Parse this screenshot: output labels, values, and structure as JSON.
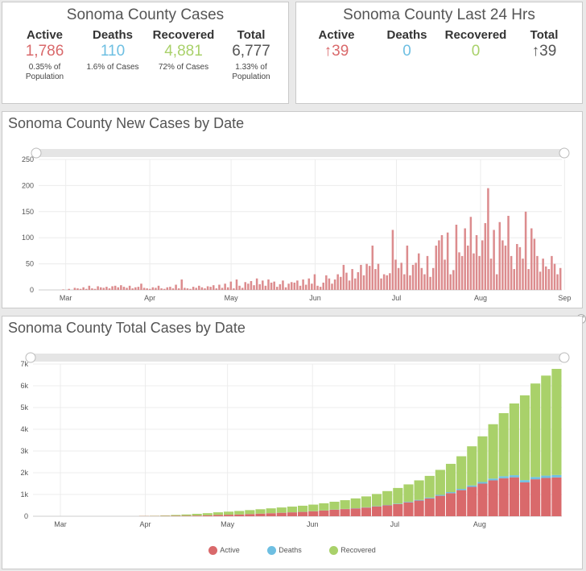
{
  "summary": {
    "title": "Sonoma County Cases",
    "active": {
      "label": "Active",
      "value": "1,786",
      "sub": "0.35% of Population"
    },
    "deaths": {
      "label": "Deaths",
      "value": "110",
      "sub": "1.6% of Cases"
    },
    "recovered": {
      "label": "Recovered",
      "value": "4,881",
      "sub": "72% of Cases"
    },
    "total": {
      "label": "Total",
      "value": "6,777",
      "sub": "1.33% of Population"
    }
  },
  "last24": {
    "title": "Sonoma County Last 24 Hrs",
    "active": {
      "label": "Active",
      "value": "↑39"
    },
    "deaths": {
      "label": "Deaths",
      "value": "0"
    },
    "recovered": {
      "label": "Recovered",
      "value": "0"
    },
    "total": {
      "label": "Total",
      "value": "↑39"
    }
  },
  "colors": {
    "active": "#d9696b",
    "deaths": "#6ebfe2",
    "recovered": "#a9d16a",
    "total": "#555555",
    "new_bar": "#dc8c8e"
  },
  "expand_icon": "expand-icon",
  "chart_data": [
    {
      "type": "bar",
      "title": "Sonoma County New Cases by Date",
      "x_start": "2020-02-20",
      "x_ticks": [
        "Mar",
        "Apr",
        "May",
        "Jun",
        "Jul",
        "Aug",
        "Sep"
      ],
      "y_ticks": [
        "0",
        "50",
        "100",
        "150",
        "200",
        "250"
      ],
      "ylim": [
        0,
        250
      ],
      "grid": true,
      "series": [
        {
          "values": [
            0,
            0,
            0,
            0,
            0,
            0,
            0,
            0,
            1,
            0,
            2,
            0,
            4,
            3,
            2,
            5,
            2,
            8,
            3,
            2,
            7,
            5,
            4,
            6,
            3,
            7,
            8,
            5,
            9,
            6,
            4,
            8,
            3,
            5,
            6,
            12,
            4,
            3,
            2,
            5,
            4,
            8,
            3,
            2,
            5,
            6,
            3,
            10,
            3,
            20,
            4,
            3,
            2,
            6,
            4,
            8,
            5,
            3,
            7,
            6,
            9,
            3,
            10,
            4,
            12,
            5,
            16,
            3,
            20,
            8,
            4,
            15,
            12,
            17,
            9,
            22,
            11,
            18,
            8,
            20,
            14,
            16,
            6,
            11,
            18,
            5,
            12,
            15,
            14,
            18,
            8,
            20,
            10,
            22,
            12,
            30,
            8,
            6,
            14,
            28,
            22,
            12,
            20,
            30,
            25,
            48,
            33,
            18,
            40,
            22,
            34,
            48,
            28,
            50,
            46,
            85,
            40,
            50,
            22,
            30,
            28,
            32,
            115,
            58,
            42,
            52,
            30,
            85,
            28,
            48,
            52,
            70,
            42,
            30,
            65,
            25,
            42,
            85,
            95,
            105,
            58,
            110,
            30,
            38,
            125,
            72,
            65,
            118,
            85,
            140,
            70,
            105,
            65,
            95,
            128,
            195,
            60,
            115,
            30,
            130,
            95,
            85,
            142,
            65,
            40,
            88,
            82,
            60,
            150,
            40,
            118,
            98,
            65,
            35,
            60,
            45,
            40,
            65,
            50,
            30,
            42
          ],
          "last_day": "2020-08-31"
        }
      ]
    },
    {
      "type": "bar",
      "stacked": true,
      "title": "Sonoma County Total Cases by Date",
      "x_start": "2020-02-20",
      "x_ticks": [
        "Mar",
        "Apr",
        "May",
        "Jun",
        "Jul",
        "Aug"
      ],
      "y_ticks": [
        "0",
        "1k",
        "2k",
        "3k",
        "4k",
        "5k",
        "6k",
        "7k"
      ],
      "ylim": [
        0,
        7000
      ],
      "grid": true,
      "series": [
        {
          "name": "Active",
          "values": [
            0,
            0,
            0,
            0,
            0,
            0,
            0,
            0,
            0,
            0,
            10,
            12,
            15,
            18,
            20,
            30,
            40,
            60,
            70,
            80,
            100,
            120,
            140,
            160,
            180,
            200,
            230,
            260,
            300,
            330,
            360,
            400,
            450,
            500,
            560,
            640,
            720,
            820,
            940,
            1060,
            1200,
            1350,
            1500,
            1650,
            1750,
            1790,
            1560,
            1700,
            1760,
            1786
          ]
        },
        {
          "name": "Deaths",
          "values": [
            0,
            0,
            0,
            0,
            0,
            0,
            0,
            0,
            0,
            0,
            0,
            0,
            0,
            0,
            1,
            1,
            1,
            1,
            1,
            2,
            2,
            2,
            3,
            3,
            3,
            4,
            5,
            6,
            7,
            8,
            10,
            12,
            14,
            16,
            20,
            25,
            30,
            36,
            42,
            50,
            58,
            66,
            74,
            82,
            90,
            96,
            100,
            104,
            108,
            110
          ]
        },
        {
          "name": "Recovered",
          "values": [
            0,
            0,
            0,
            0,
            0,
            0,
            0,
            0,
            0,
            0,
            5,
            10,
            20,
            40,
            60,
            80,
            100,
            120,
            140,
            160,
            180,
            200,
            220,
            240,
            260,
            280,
            300,
            330,
            360,
            400,
            450,
            500,
            560,
            640,
            720,
            800,
            900,
            1000,
            1150,
            1300,
            1500,
            1800,
            2100,
            2500,
            2900,
            3300,
            3900,
            4300,
            4600,
            4881
          ]
        }
      ],
      "legend_position": "bottom-center"
    }
  ]
}
